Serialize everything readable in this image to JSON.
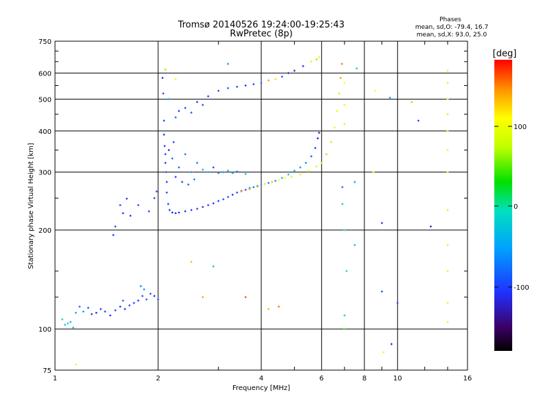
{
  "chart_data": {
    "type": "scatter",
    "title": "Tromsø 20140526 19:24:00-19:25:43",
    "subtitle": "RwPretec (8p)",
    "xlabel": "Frequency [MHz]",
    "ylabel": "Stationary phase Virtual Height [km]",
    "x_scale": "log",
    "y_scale": "log",
    "xlim": [
      1,
      16
    ],
    "ylim": [
      75,
      750
    ],
    "grid": true,
    "x_ticks": [
      "1",
      "2",
      "4",
      "6",
      "8",
      "10",
      "16"
    ],
    "y_ticks": [
      "75",
      "100",
      "200",
      "300",
      "400",
      "500",
      "600",
      "750"
    ],
    "phases_box": {
      "title": "Phases",
      "line_o": "mean, sd,O: -79.4, 16.7",
      "line_x": "mean, sd,X:  93.0, 25.0"
    },
    "colorbar": {
      "label": "[deg]",
      "range": [
        -180,
        180
      ],
      "ticks": [
        "100",
        "0",
        "-100"
      ],
      "colormap": "rainbow (black to red)"
    },
    "series": [
      {
        "points": [
          {
            "x": 1.05,
            "y": 107,
            "c": -20
          },
          {
            "x": 1.07,
            "y": 103,
            "c": -30
          },
          {
            "x": 1.09,
            "y": 104,
            "c": -15
          },
          {
            "x": 1.11,
            "y": 105,
            "c": -40
          },
          {
            "x": 1.13,
            "y": 101,
            "c": -30
          },
          {
            "x": 1.15,
            "y": 112,
            "c": -50
          },
          {
            "x": 1.18,
            "y": 117,
            "c": -80
          },
          {
            "x": 1.21,
            "y": 113,
            "c": -60
          },
          {
            "x": 1.25,
            "y": 116,
            "c": -100
          },
          {
            "x": 1.28,
            "y": 111,
            "c": -110
          },
          {
            "x": 1.32,
            "y": 112,
            "c": -120
          },
          {
            "x": 1.36,
            "y": 115,
            "c": -110
          },
          {
            "x": 1.4,
            "y": 113,
            "c": -100
          },
          {
            "x": 1.45,
            "y": 110,
            "c": -110
          },
          {
            "x": 1.5,
            "y": 114,
            "c": -105
          },
          {
            "x": 1.55,
            "y": 117,
            "c": -110
          },
          {
            "x": 1.6,
            "y": 115,
            "c": -115
          },
          {
            "x": 1.65,
            "y": 118,
            "c": -100
          },
          {
            "x": 1.7,
            "y": 120,
            "c": -105
          },
          {
            "x": 1.75,
            "y": 122,
            "c": -110
          },
          {
            "x": 1.8,
            "y": 126,
            "c": -100
          },
          {
            "x": 1.85,
            "y": 123,
            "c": -90
          },
          {
            "x": 1.9,
            "y": 128,
            "c": -100
          },
          {
            "x": 1.95,
            "y": 126,
            "c": -110
          },
          {
            "x": 2.0,
            "y": 123,
            "c": -100
          },
          {
            "x": 1.78,
            "y": 135,
            "c": -70
          },
          {
            "x": 1.82,
            "y": 132,
            "c": -60
          },
          {
            "x": 1.58,
            "y": 122,
            "c": -90
          },
          {
            "x": 1.48,
            "y": 193,
            "c": -110
          },
          {
            "x": 1.5,
            "y": 205,
            "c": -100
          },
          {
            "x": 1.58,
            "y": 225,
            "c": -110
          },
          {
            "x": 1.66,
            "y": 221,
            "c": -115
          },
          {
            "x": 1.55,
            "y": 238,
            "c": -100
          },
          {
            "x": 1.62,
            "y": 249,
            "c": -105
          },
          {
            "x": 1.75,
            "y": 238,
            "c": -100
          },
          {
            "x": 1.88,
            "y": 228,
            "c": -100
          },
          {
            "x": 1.95,
            "y": 250,
            "c": -90
          },
          {
            "x": 1.98,
            "y": 262,
            "c": -100
          },
          {
            "x": 2.06,
            "y": 580,
            "c": -110
          },
          {
            "x": 2.07,
            "y": 520,
            "c": -100
          },
          {
            "x": 2.08,
            "y": 430,
            "c": -100
          },
          {
            "x": 2.08,
            "y": 390,
            "c": -110
          },
          {
            "x": 2.09,
            "y": 360,
            "c": -105
          },
          {
            "x": 2.1,
            "y": 340,
            "c": -100
          },
          {
            "x": 2.1,
            "y": 320,
            "c": -110
          },
          {
            "x": 2.11,
            "y": 300,
            "c": -95
          },
          {
            "x": 2.12,
            "y": 280,
            "c": -110
          },
          {
            "x": 2.12,
            "y": 260,
            "c": -100
          },
          {
            "x": 2.14,
            "y": 240,
            "c": -110
          },
          {
            "x": 2.16,
            "y": 230,
            "c": -110
          },
          {
            "x": 2.2,
            "y": 226,
            "c": -115
          },
          {
            "x": 2.25,
            "y": 225,
            "c": -110
          },
          {
            "x": 2.3,
            "y": 226,
            "c": -110
          },
          {
            "x": 2.4,
            "y": 228,
            "c": -110
          },
          {
            "x": 2.5,
            "y": 230,
            "c": -105
          },
          {
            "x": 2.6,
            "y": 232,
            "c": -110
          },
          {
            "x": 2.7,
            "y": 235,
            "c": -110
          },
          {
            "x": 2.8,
            "y": 238,
            "c": -110
          },
          {
            "x": 2.9,
            "y": 241,
            "c": -110
          },
          {
            "x": 3.0,
            "y": 245,
            "c": -110
          },
          {
            "x": 3.1,
            "y": 248,
            "c": -100
          },
          {
            "x": 3.2,
            "y": 252,
            "c": -100
          },
          {
            "x": 3.3,
            "y": 256,
            "c": -110
          },
          {
            "x": 3.4,
            "y": 260,
            "c": -100
          },
          {
            "x": 3.5,
            "y": 263,
            "c": -100
          },
          {
            "x": 3.6,
            "y": 265,
            "c": -90
          },
          {
            "x": 3.7,
            "y": 268,
            "c": -90
          },
          {
            "x": 3.8,
            "y": 270,
            "c": -80
          },
          {
            "x": 3.9,
            "y": 272,
            "c": -80
          },
          {
            "x": 4.0,
            "y": 274,
            "c": -70
          },
          {
            "x": 4.2,
            "y": 278,
            "c": -60
          },
          {
            "x": 4.4,
            "y": 282,
            "c": -50
          },
          {
            "x": 4.6,
            "y": 288,
            "c": -40
          },
          {
            "x": 4.8,
            "y": 295,
            "c": -30
          },
          {
            "x": 5.0,
            "y": 303,
            "c": -40
          },
          {
            "x": 5.2,
            "y": 310,
            "c": -60
          },
          {
            "x": 5.4,
            "y": 320,
            "c": -70
          },
          {
            "x": 5.6,
            "y": 335,
            "c": -90
          },
          {
            "x": 5.75,
            "y": 355,
            "c": -110
          },
          {
            "x": 5.85,
            "y": 380,
            "c": -130
          },
          {
            "x": 5.9,
            "y": 395,
            "c": -120
          },
          {
            "x": 3.5,
            "y": 262,
            "c": 140
          },
          {
            "x": 3.7,
            "y": 266,
            "c": 130
          },
          {
            "x": 3.9,
            "y": 271,
            "c": 140
          },
          {
            "x": 4.1,
            "y": 276,
            "c": 120
          },
          {
            "x": 4.3,
            "y": 280,
            "c": 130
          },
          {
            "x": 4.5,
            "y": 284,
            "c": 110
          },
          {
            "x": 4.7,
            "y": 288,
            "c": 100
          },
          {
            "x": 4.9,
            "y": 290,
            "c": 95
          },
          {
            "x": 5.2,
            "y": 295,
            "c": 90
          },
          {
            "x": 5.5,
            "y": 302,
            "c": 95
          },
          {
            "x": 5.8,
            "y": 312,
            "c": 80
          },
          {
            "x": 6.0,
            "y": 320,
            "c": 70
          },
          {
            "x": 6.2,
            "y": 340,
            "c": 60
          },
          {
            "x": 6.4,
            "y": 370,
            "c": 70
          },
          {
            "x": 6.55,
            "y": 410,
            "c": 90
          },
          {
            "x": 6.65,
            "y": 460,
            "c": 100
          },
          {
            "x": 6.75,
            "y": 520,
            "c": 120
          },
          {
            "x": 6.82,
            "y": 580,
            "c": 140
          },
          {
            "x": 6.88,
            "y": 640,
            "c": 150
          },
          {
            "x": 2.2,
            "y": 330,
            "c": -80
          },
          {
            "x": 2.3,
            "y": 310,
            "c": -90
          },
          {
            "x": 2.4,
            "y": 340,
            "c": -70
          },
          {
            "x": 2.5,
            "y": 300,
            "c": -60
          },
          {
            "x": 2.6,
            "y": 320,
            "c": -80
          },
          {
            "x": 2.7,
            "y": 305,
            "c": -40
          },
          {
            "x": 2.8,
            "y": 300,
            "c": -50
          },
          {
            "x": 2.9,
            "y": 310,
            "c": -100
          },
          {
            "x": 3.0,
            "y": 298,
            "c": -70
          },
          {
            "x": 3.1,
            "y": 300,
            "c": -60
          },
          {
            "x": 3.2,
            "y": 303,
            "c": -30
          },
          {
            "x": 3.3,
            "y": 298,
            "c": -50
          },
          {
            "x": 3.4,
            "y": 301,
            "c": -80
          },
          {
            "x": 3.6,
            "y": 296,
            "c": -40
          },
          {
            "x": 2.25,
            "y": 290,
            "c": -100
          },
          {
            "x": 2.35,
            "y": 280,
            "c": -110
          },
          {
            "x": 2.45,
            "y": 275,
            "c": -90
          },
          {
            "x": 2.15,
            "y": 350,
            "c": -120
          },
          {
            "x": 2.22,
            "y": 370,
            "c": -100
          },
          {
            "x": 2.55,
            "y": 285,
            "c": -70
          },
          {
            "x": 2.3,
            "y": 460,
            "c": -110
          },
          {
            "x": 2.4,
            "y": 470,
            "c": -100
          },
          {
            "x": 2.5,
            "y": 455,
            "c": -90
          },
          {
            "x": 2.6,
            "y": 490,
            "c": -110
          },
          {
            "x": 2.7,
            "y": 480,
            "c": -100
          },
          {
            "x": 2.8,
            "y": 510,
            "c": -110
          },
          {
            "x": 3.0,
            "y": 530,
            "c": -100
          },
          {
            "x": 3.2,
            "y": 540,
            "c": -90
          },
          {
            "x": 3.4,
            "y": 545,
            "c": -100
          },
          {
            "x": 3.6,
            "y": 550,
            "c": -110
          },
          {
            "x": 3.8,
            "y": 555,
            "c": -100
          },
          {
            "x": 4.0,
            "y": 560,
            "c": -90
          },
          {
            "x": 4.2,
            "y": 570,
            "c": 140
          },
          {
            "x": 4.4,
            "y": 575,
            "c": 120
          },
          {
            "x": 4.6,
            "y": 585,
            "c": -100
          },
          {
            "x": 4.8,
            "y": 600,
            "c": -120
          },
          {
            "x": 5.0,
            "y": 610,
            "c": -130
          },
          {
            "x": 5.3,
            "y": 630,
            "c": -110
          },
          {
            "x": 5.6,
            "y": 650,
            "c": 90
          },
          {
            "x": 5.8,
            "y": 660,
            "c": 60
          },
          {
            "x": 5.9,
            "y": 670,
            "c": 80
          },
          {
            "x": 2.15,
            "y": 500,
            "c": -60
          },
          {
            "x": 2.25,
            "y": 440,
            "c": -80
          },
          {
            "x": 7.0,
            "y": 560,
            "c": 100
          },
          {
            "x": 7.0,
            "y": 480,
            "c": 90
          },
          {
            "x": 7.0,
            "y": 420,
            "c": 80
          },
          {
            "x": 6.9,
            "y": 270,
            "c": -80
          },
          {
            "x": 6.9,
            "y": 240,
            "c": -30
          },
          {
            "x": 7.0,
            "y": 200,
            "c": -20
          },
          {
            "x": 7.1,
            "y": 150,
            "c": -10
          },
          {
            "x": 7.0,
            "y": 110,
            "c": 10
          },
          {
            "x": 7.0,
            "y": 100,
            "c": 40
          },
          {
            "x": 7.5,
            "y": 280,
            "c": -60
          },
          {
            "x": 7.5,
            "y": 180,
            "c": -40
          },
          {
            "x": 7.6,
            "y": 620,
            "c": -20
          },
          {
            "x": 8.5,
            "y": 300,
            "c": 100
          },
          {
            "x": 8.6,
            "y": 530,
            "c": 110
          },
          {
            "x": 9.0,
            "y": 210,
            "c": -110
          },
          {
            "x": 9.0,
            "y": 130,
            "c": -90
          },
          {
            "x": 9.1,
            "y": 85,
            "c": 90
          },
          {
            "x": 9.5,
            "y": 505,
            "c": -60
          },
          {
            "x": 9.6,
            "y": 90,
            "c": -120
          },
          {
            "x": 10.0,
            "y": 120,
            "c": -100
          },
          {
            "x": 11.0,
            "y": 490,
            "c": 60
          },
          {
            "x": 11.5,
            "y": 430,
            "c": -100
          },
          {
            "x": 12.5,
            "y": 205,
            "c": -130
          },
          {
            "x": 14.0,
            "y": 610,
            "c": 90
          },
          {
            "x": 14.0,
            "y": 560,
            "c": 85
          },
          {
            "x": 14.0,
            "y": 500,
            "c": 90
          },
          {
            "x": 14.0,
            "y": 450,
            "c": 80
          },
          {
            "x": 14.0,
            "y": 400,
            "c": 85
          },
          {
            "x": 14.0,
            "y": 350,
            "c": 90
          },
          {
            "x": 14.0,
            "y": 300,
            "c": 95
          },
          {
            "x": 14.0,
            "y": 230,
            "c": 80
          },
          {
            "x": 14.0,
            "y": 180,
            "c": 85
          },
          {
            "x": 14.0,
            "y": 150,
            "c": 90
          },
          {
            "x": 14.0,
            "y": 120,
            "c": 95
          },
          {
            "x": 14.0,
            "y": 105,
            "c": 85
          },
          {
            "x": 1.15,
            "y": 78,
            "c": 90
          },
          {
            "x": 2.7,
            "y": 125,
            "c": 140
          },
          {
            "x": 2.5,
            "y": 160,
            "c": 130
          },
          {
            "x": 2.9,
            "y": 155,
            "c": -30
          },
          {
            "x": 3.6,
            "y": 125,
            "c": 160
          },
          {
            "x": 4.2,
            "y": 115,
            "c": 130
          },
          {
            "x": 4.5,
            "y": 117,
            "c": 150
          },
          {
            "x": 2.1,
            "y": 615,
            "c": 60
          },
          {
            "x": 3.2,
            "y": 640,
            "c": -60
          },
          {
            "x": 2.25,
            "y": 575,
            "c": 100
          }
        ]
      }
    ]
  }
}
